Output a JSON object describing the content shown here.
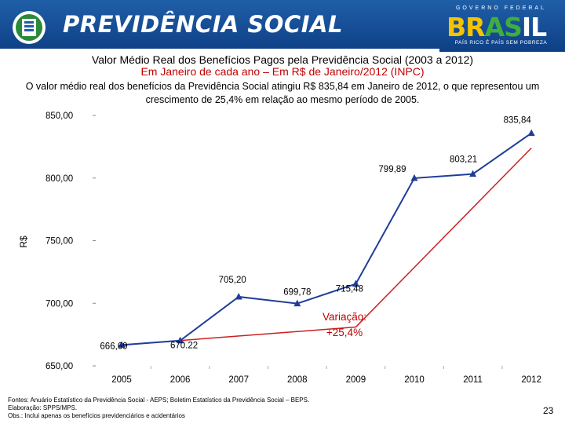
{
  "header": {
    "brand": "PREVIDÊNCIA SOCIAL",
    "gov_top": "GOVERNO FEDERAL",
    "gov_brasil_parts": [
      "BR",
      "AS",
      "IL"
    ],
    "gov_slogan": "PAÍS RICO É PAÍS SEM POBREZA"
  },
  "title": "Valor Médio Real dos Benefícios Pagos pela Previdência Social (2003 a 2012)",
  "subtitle": "Em Janeiro de cada ano – Em R$ de Janeiro/2012 (INPC)",
  "description": "O valor médio real dos benefícios da Previdência Social atingiu R$ 835,84 em Janeiro de 2012, o que representou um crescimento de 25,4% em relação ao mesmo período de 2005.",
  "chart_data": {
    "type": "line",
    "ylabel": "R$",
    "xlabel": "",
    "ylim": [
      650,
      850
    ],
    "yticks": [
      "650,00",
      "700,00",
      "750,00",
      "800,00",
      "850,00"
    ],
    "ytick_values": [
      650,
      700,
      750,
      800,
      850
    ],
    "categories": [
      "2005",
      "2006",
      "2007",
      "2008",
      "2009",
      "2010",
      "2011",
      "2012"
    ],
    "series": [
      {
        "name": "Valor médio real",
        "values": [
          666.69,
          670.22,
          705.2,
          699.78,
          715.48,
          799.89,
          803.21,
          835.84
        ],
        "labels": [
          "666,69",
          "670.22",
          "705,20",
          "699,78",
          "715,48",
          "799,89",
          "803,21",
          "835,84"
        ],
        "color": "#1f3d99"
      }
    ],
    "trend_line": {
      "name": "Variação",
      "color": "#cc1f1f",
      "segments": [
        {
          "from": {
            "x": "2005",
            "y": 666.69
          },
          "to": {
            "x": "2009",
            "y": 681
          }
        },
        {
          "from": {
            "x": "2009",
            "y": 681
          },
          "to": {
            "x": "2012",
            "y": 824
          }
        }
      ]
    },
    "annotation": {
      "line1": "Variação:",
      "line2": "+25,4%",
      "color": "#c00000"
    }
  },
  "footer": {
    "sources": "Fontes: Anuário Estatístico da Previdência Social - AEPS; Boletim Estatístico da Previdência Social – BEPS.",
    "elaboration": "Elaboração: SPPS/MPS.",
    "obs": "Obs.: Inclui apenas os benefícios previdenciários e acidentários"
  },
  "page_number": "23"
}
